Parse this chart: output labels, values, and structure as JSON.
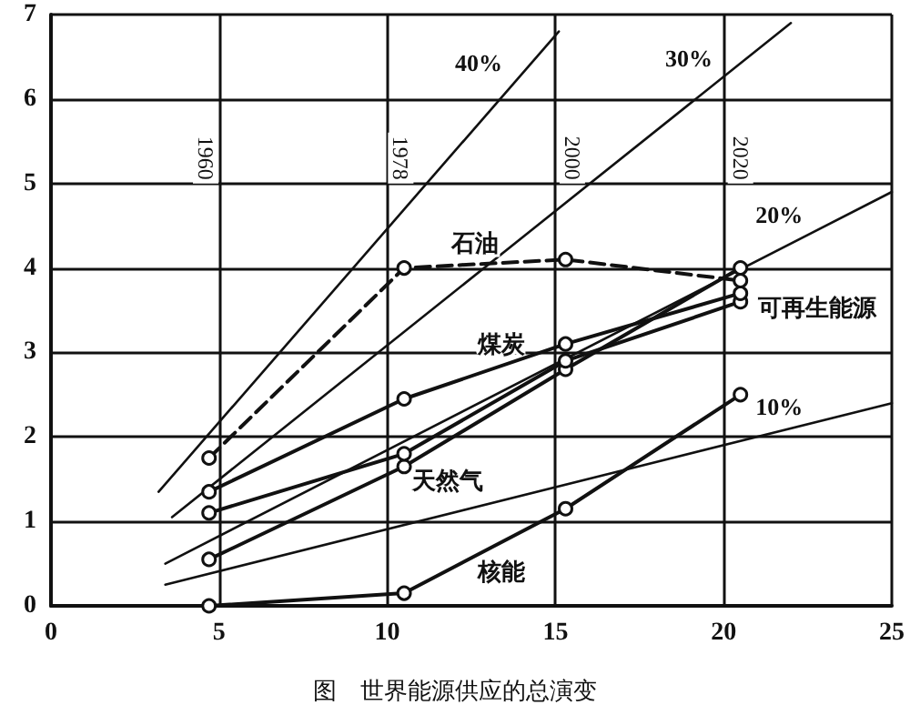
{
  "chart_data": {
    "type": "line",
    "title": "图　世界能源供应的总演变",
    "xlim": [
      0,
      25
    ],
    "xticks": [
      0,
      5,
      10,
      15,
      20,
      25
    ],
    "ylim": [
      0,
      7
    ],
    "yticks": [
      0,
      1,
      2,
      3,
      4,
      5,
      6,
      7
    ],
    "grid": true,
    "legend": false,
    "marker": "circle",
    "line_style": "solid",
    "series": [
      {
        "name": "石油",
        "color": "#111111",
        "line_style": "dashed",
        "x": [
          4.7,
          10.5,
          15.3,
          20.5
        ],
        "values": [
          1.75,
          4.0,
          4.1,
          3.85
        ]
      },
      {
        "name": "煤炭",
        "color": "#111111",
        "x": [
          4.7,
          10.5,
          15.3,
          20.5
        ],
        "values": [
          1.35,
          2.45,
          3.1,
          3.7
        ]
      },
      {
        "name": "可再生能源",
        "color": "#111111",
        "x": [
          4.7,
          10.5,
          15.3,
          20.5
        ],
        "values": [
          1.1,
          1.8,
          2.9,
          3.6
        ]
      },
      {
        "name": "天然气",
        "color": "#111111",
        "x": [
          4.7,
          10.5,
          15.3,
          20.5
        ],
        "values": [
          0.55,
          1.65,
          2.8,
          4.0
        ]
      },
      {
        "name": "核能",
        "color": "#111111",
        "x": [
          4.7,
          10.5,
          15.3,
          20.5
        ],
        "values": [
          0,
          0.15,
          1.15,
          2.5
        ]
      },
      {
        "name": "40%",
        "color": "#111111",
        "marker": "none",
        "x": [
          3.2,
          15.1
        ],
        "values": [
          1.35,
          6.8
        ]
      },
      {
        "name": "30%",
        "color": "#111111",
        "marker": "none",
        "x": [
          3.6,
          22
        ],
        "values": [
          1.05,
          6.9
        ]
      },
      {
        "name": "20%",
        "color": "#111111",
        "marker": "none",
        "x": [
          3.4,
          25
        ],
        "values": [
          0.5,
          4.9
        ]
      },
      {
        "name": "10%",
        "color": "#111111",
        "marker": "none",
        "x": [
          3.4,
          25
        ],
        "values": [
          0.25,
          2.4
        ]
      }
    ],
    "annotations": [
      {
        "text": "1960",
        "x": 4.6,
        "y": 5.3
      },
      {
        "text": "1978",
        "x": 10.4,
        "y": 5.3
      },
      {
        "text": "2000",
        "x": 15.5,
        "y": 5.3
      },
      {
        "text": "2020",
        "x": 20.5,
        "y": 5.3
      }
    ]
  }
}
